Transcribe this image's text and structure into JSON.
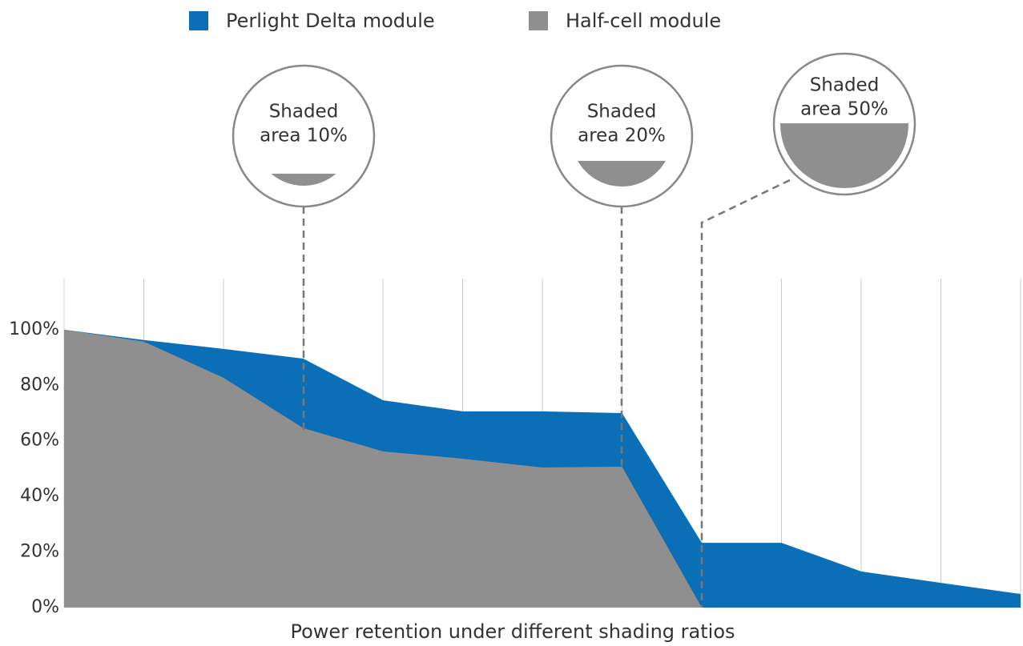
{
  "chart_data": {
    "type": "area",
    "title": "Power retention under different shading ratios",
    "categories": [
      null,
      null,
      null,
      null,
      null,
      null,
      null,
      null,
      null,
      null,
      null,
      null,
      null
    ],
    "series": [
      {
        "name": "Perlight Delta module",
        "color": "#0a6fb7",
        "values": [
          100,
          96.3,
          93.1,
          89.6,
          74.6,
          70.6,
          70.6,
          70,
          23.3,
          23.3,
          13,
          8.9,
          4.9
        ]
      },
      {
        "name": "Half-cell module",
        "color": "#8f8f8f",
        "values": [
          100,
          95.7,
          82.7,
          64.6,
          56.2,
          53.6,
          50.4,
          50.7,
          0,
          null,
          null,
          null,
          null
        ]
      }
    ],
    "ylim": [
      0,
      118.4
    ],
    "yticks": [
      {
        "value": 0,
        "label": "0%"
      },
      {
        "value": 20,
        "label": "20%"
      },
      {
        "value": 40,
        "label": "40%"
      },
      {
        "value": 60,
        "label": "60%"
      },
      {
        "value": 80,
        "label": "80%"
      },
      {
        "value": 100,
        "label": "100%"
      }
    ],
    "grid": true,
    "annotations": [
      {
        "text": [
          "Shaded",
          "area 10%"
        ]
      },
      {
        "text": [
          "Shaded",
          "area 20%"
        ]
      },
      {
        "text": [
          "Shaded",
          "area 50%"
        ]
      }
    ]
  }
}
